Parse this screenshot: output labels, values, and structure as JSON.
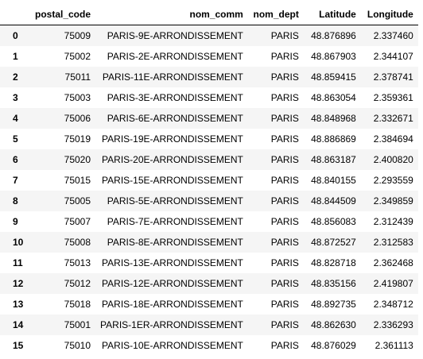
{
  "table": {
    "index_header": "",
    "columns": [
      "postal_code",
      "nom_comm",
      "nom_dept",
      "Latitude",
      "Longitude"
    ],
    "rows": [
      {
        "index": "0",
        "cells": [
          "75009",
          "PARIS-9E-ARRONDISSEMENT",
          "PARIS",
          "48.876896",
          "2.337460"
        ]
      },
      {
        "index": "1",
        "cells": [
          "75002",
          "PARIS-2E-ARRONDISSEMENT",
          "PARIS",
          "48.867903",
          "2.344107"
        ]
      },
      {
        "index": "2",
        "cells": [
          "75011",
          "PARIS-11E-ARRONDISSEMENT",
          "PARIS",
          "48.859415",
          "2.378741"
        ]
      },
      {
        "index": "3",
        "cells": [
          "75003",
          "PARIS-3E-ARRONDISSEMENT",
          "PARIS",
          "48.863054",
          "2.359361"
        ]
      },
      {
        "index": "4",
        "cells": [
          "75006",
          "PARIS-6E-ARRONDISSEMENT",
          "PARIS",
          "48.848968",
          "2.332671"
        ]
      },
      {
        "index": "5",
        "cells": [
          "75019",
          "PARIS-19E-ARRONDISSEMENT",
          "PARIS",
          "48.886869",
          "2.384694"
        ]
      },
      {
        "index": "6",
        "cells": [
          "75020",
          "PARIS-20E-ARRONDISSEMENT",
          "PARIS",
          "48.863187",
          "2.400820"
        ]
      },
      {
        "index": "7",
        "cells": [
          "75015",
          "PARIS-15E-ARRONDISSEMENT",
          "PARIS",
          "48.840155",
          "2.293559"
        ]
      },
      {
        "index": "8",
        "cells": [
          "75005",
          "PARIS-5E-ARRONDISSEMENT",
          "PARIS",
          "48.844509",
          "2.349859"
        ]
      },
      {
        "index": "9",
        "cells": [
          "75007",
          "PARIS-7E-ARRONDISSEMENT",
          "PARIS",
          "48.856083",
          "2.312439"
        ]
      },
      {
        "index": "10",
        "cells": [
          "75008",
          "PARIS-8E-ARRONDISSEMENT",
          "PARIS",
          "48.872527",
          "2.312583"
        ]
      },
      {
        "index": "11",
        "cells": [
          "75013",
          "PARIS-13E-ARRONDISSEMENT",
          "PARIS",
          "48.828718",
          "2.362468"
        ]
      },
      {
        "index": "12",
        "cells": [
          "75012",
          "PARIS-12E-ARRONDISSEMENT",
          "PARIS",
          "48.835156",
          "2.419807"
        ]
      },
      {
        "index": "13",
        "cells": [
          "75018",
          "PARIS-18E-ARRONDISSEMENT",
          "PARIS",
          "48.892735",
          "2.348712"
        ]
      },
      {
        "index": "14",
        "cells": [
          "75001",
          "PARIS-1ER-ARRONDISSEMENT",
          "PARIS",
          "48.862630",
          "2.336293"
        ]
      },
      {
        "index": "15",
        "cells": [
          "75010",
          "PARIS-10E-ARRONDISSEMENT",
          "PARIS",
          "48.876029",
          "2.361113"
        ]
      }
    ]
  },
  "colors": {
    "stripe": "#f5f5f5",
    "header_rule": "#000000"
  }
}
